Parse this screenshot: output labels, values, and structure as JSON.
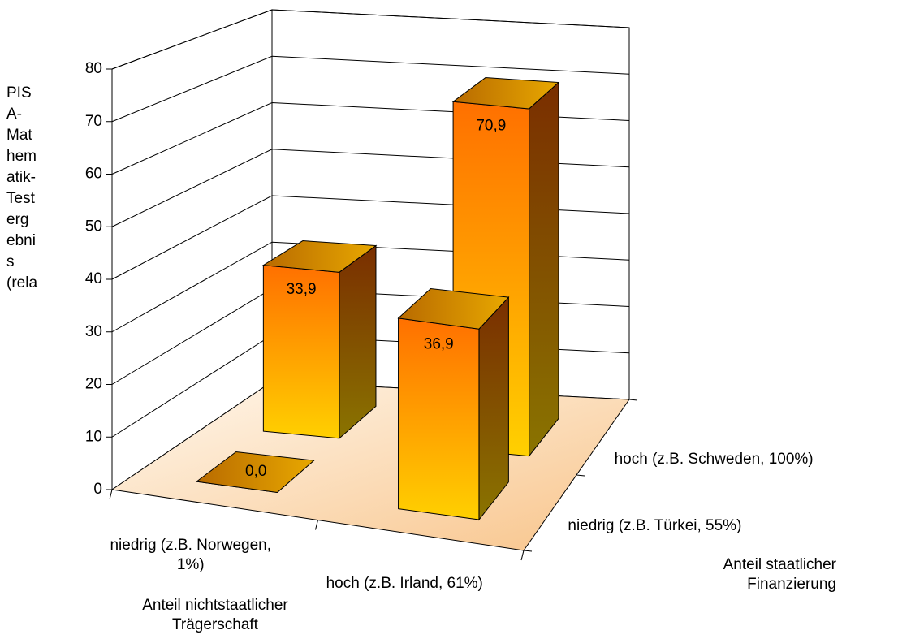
{
  "chart_data": {
    "type": "bar3d",
    "y_label": "PISA-Mathematik-Testergebnis (rela",
    "x_label": "Anteil nichtstaatlicher Trägerschaft",
    "z_label": "Anteil staatlicher Finanzierung",
    "categories": [
      "niedrig (z.B. Norwegen, 1%)",
      "hoch (z.B. Irland, 61%)"
    ],
    "series": [
      {
        "name": "niedrig (z.B. Türkei, 55%)",
        "color": "#ff8000",
        "values": [
          0.0,
          36.9
        ],
        "value_labels": [
          "0,0",
          "36,9"
        ]
      },
      {
        "name": "hoch (z.B. Schweden, 100%)",
        "color": "#ff8000",
        "values": [
          33.9,
          70.9
        ],
        "value_labels": [
          "33,9",
          "70,9"
        ]
      }
    ],
    "ylim": [
      0,
      80
    ],
    "yticks": [
      0,
      10,
      20,
      30,
      40,
      50,
      60,
      70,
      80
    ],
    "grid": true
  }
}
